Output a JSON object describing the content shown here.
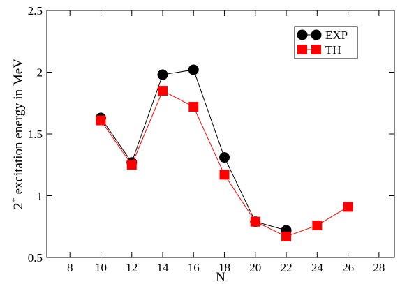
{
  "chart_data": {
    "type": "line",
    "title": "",
    "xlabel": "N",
    "ylabel": {
      "prefix": "2",
      "superscript": "+",
      "suffix": " excitation energy in MeV"
    },
    "xlim": [
      6.5,
      29
    ],
    "ylim": [
      0.5,
      2.5
    ],
    "xticks": [
      8,
      10,
      12,
      14,
      16,
      18,
      20,
      22,
      24,
      26,
      28
    ],
    "yticks": [
      0.5,
      1,
      1.5,
      2,
      2.5
    ],
    "xtick_labels": [
      "8",
      "10",
      "12",
      "14",
      "16",
      "18",
      "20",
      "22",
      "24",
      "26",
      "28"
    ],
    "ytick_labels": [
      "0.5",
      "1",
      "1.5",
      "2",
      "2.5"
    ],
    "grid": false,
    "legend_position": "top-right",
    "series": [
      {
        "name": "EXP",
        "color": "#000000",
        "marker": "circle",
        "x": [
          10,
          12,
          14,
          16,
          18,
          20,
          22
        ],
        "y": [
          1.63,
          1.27,
          1.98,
          2.02,
          1.31,
          0.79,
          0.72
        ]
      },
      {
        "name": "TH",
        "color": "#ff0000",
        "marker": "square",
        "x": [
          10,
          12,
          14,
          16,
          18,
          20,
          22,
          24,
          26
        ],
        "y": [
          1.61,
          1.25,
          1.85,
          1.72,
          1.17,
          0.79,
          0.67,
          0.76,
          0.91
        ]
      }
    ]
  }
}
